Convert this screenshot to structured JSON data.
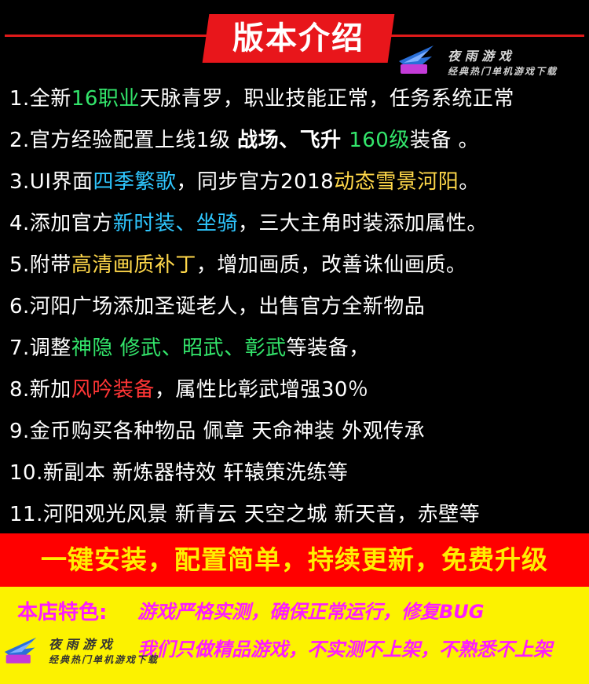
{
  "title": "版本介绍",
  "logo": {
    "badge_text": "夜雨游戏",
    "name": "夜 雨 游 戏",
    "slogan": "经典热门单机游戏下载"
  },
  "features": [
    [
      {
        "t": "1.全新"
      },
      {
        "t": "16职业",
        "c": "green"
      },
      {
        "t": "天脉青罗，职业技能正常，任务系统正常"
      }
    ],
    [
      {
        "t": "2.官方经验配置上线1级 "
      },
      {
        "t": "战场、飞升 ",
        "c": "bold"
      },
      {
        "t": "160级",
        "c": "green"
      },
      {
        "t": "装备 。"
      }
    ],
    [
      {
        "t": "3.UI界面"
      },
      {
        "t": "四季繁歌",
        "c": "cyan"
      },
      {
        "t": "，同步官方2018"
      },
      {
        "t": "动态雪景河阳",
        "c": "yellow"
      },
      {
        "t": "。"
      }
    ],
    [
      {
        "t": "4.添加官方"
      },
      {
        "t": "新时装、坐骑",
        "c": "cyan"
      },
      {
        "t": "，三大主角时装添加属性。"
      }
    ],
    [
      {
        "t": "5.附带"
      },
      {
        "t": "高清画质补丁",
        "c": "yellow"
      },
      {
        "t": "，增加画质，改善诛仙画质。"
      }
    ],
    [
      {
        "t": "6.河阳广场添加圣诞老人，出售官方全新物品"
      }
    ],
    [
      {
        "t": "7.调整"
      },
      {
        "t": "神隐 修武、昭武、彰武",
        "c": "green"
      },
      {
        "t": "等装备，"
      }
    ],
    [
      {
        "t": "8.新加"
      },
      {
        "t": "风吟装备",
        "c": "red"
      },
      {
        "t": "，属性比彰武增强30％"
      }
    ],
    [
      {
        "t": "9.金币购买各种物品 佩章 天命神装 外观传承"
      }
    ],
    [
      {
        "t": "10.新副本 新炼器特效 轩辕策洗练等"
      }
    ],
    [
      {
        "t": "11.河阳观光风景 新青云 天空之城 新天音，赤壁等"
      }
    ]
  ],
  "banner": "一键安装，配置简单，持续更新，免费升级",
  "shop": {
    "label": "本店特色:",
    "line1": "游戏严格实测，确保正常运行，修复BUG",
    "line2": "我们只做精品游戏，不实测不上架，不熟悉不上架"
  },
  "colors": {
    "title_bg": "#e8161b",
    "banner_bg": "#ff0000",
    "banner_text": "#ffee00",
    "shop_bg": "#fcf200",
    "shop_text": "#ff1aff",
    "green": "#33e56b",
    "cyan": "#2fc7ff",
    "yellow": "#ffd84a",
    "red": "#ff3535"
  }
}
